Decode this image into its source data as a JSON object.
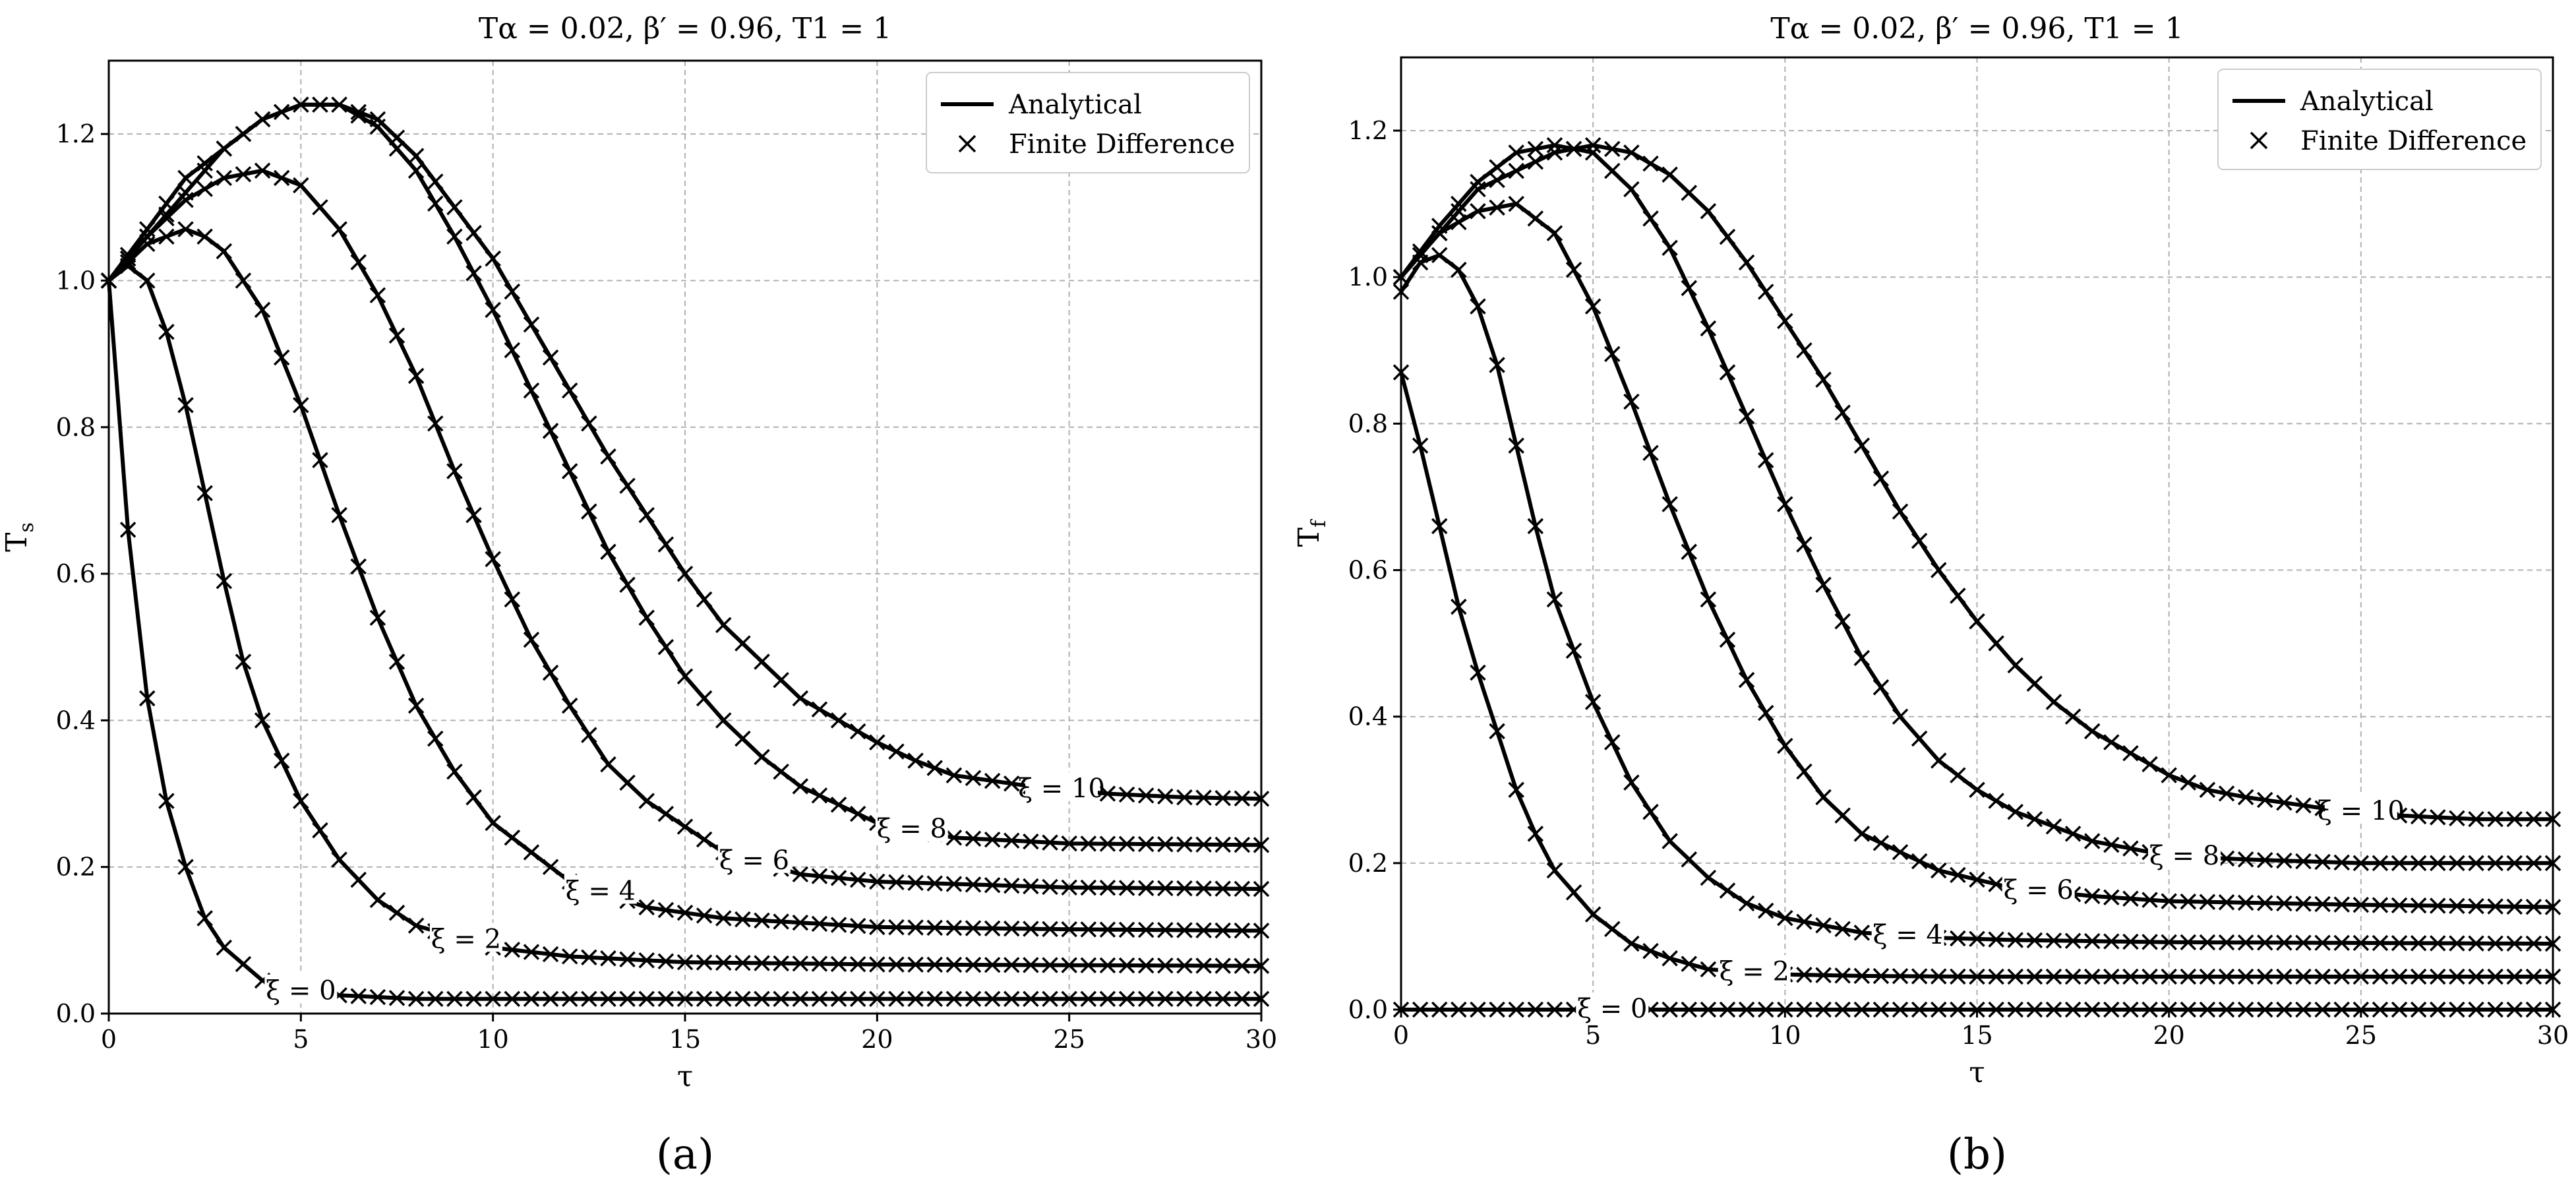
{
  "chart_data": [
    {
      "id": "a",
      "type": "line",
      "panel_label": "(a)",
      "title": "Tα = 0.02, β′ = 0.96, T1 = 1",
      "xlabel": "τ",
      "ylabel": "Ts",
      "xlim": [
        0,
        30
      ],
      "ylim": [
        0,
        1.3
      ],
      "xticks": [
        0,
        5,
        10,
        15,
        20,
        25,
        30
      ],
      "yticks": [
        0.0,
        0.2,
        0.4,
        0.6,
        0.8,
        1.0,
        1.2
      ],
      "grid": true,
      "legend": {
        "position": "top-right",
        "entries": [
          "Analytical",
          "Finite Difference"
        ]
      },
      "series": [
        {
          "name": "ξ = 0",
          "label": "ξ = 0",
          "label_tau": 5.0,
          "tau": [
            0,
            0.5,
            1,
            1.5,
            2,
            2.5,
            3,
            4,
            5,
            6,
            8,
            10,
            15,
            20,
            25,
            30
          ],
          "values": [
            1.0,
            0.66,
            0.43,
            0.29,
            0.2,
            0.13,
            0.09,
            0.045,
            0.03,
            0.025,
            0.02,
            0.02,
            0.02,
            0.02,
            0.02,
            0.02
          ]
        },
        {
          "name": "ξ = 2",
          "label": "ξ = 2",
          "label_tau": 9.3,
          "tau": [
            0,
            0.5,
            1,
            1.5,
            2,
            2.5,
            3,
            3.5,
            4,
            5,
            6,
            7,
            8,
            10,
            12,
            15,
            20,
            25,
            30
          ],
          "values": [
            1.0,
            1.02,
            1.0,
            0.93,
            0.83,
            0.71,
            0.59,
            0.48,
            0.4,
            0.29,
            0.21,
            0.155,
            0.12,
            0.09,
            0.078,
            0.07,
            0.067,
            0.066,
            0.065
          ]
        },
        {
          "name": "ξ = 4",
          "label": "ξ = 4",
          "label_tau": 12.8,
          "tau": [
            0,
            1,
            2,
            2.5,
            3,
            4,
            5,
            6,
            7,
            8,
            9,
            10,
            12,
            14,
            16,
            20,
            25,
            30
          ],
          "values": [
            1.0,
            1.05,
            1.07,
            1.06,
            1.04,
            0.96,
            0.83,
            0.68,
            0.54,
            0.42,
            0.33,
            0.26,
            0.18,
            0.145,
            0.13,
            0.118,
            0.115,
            0.113
          ]
        },
        {
          "name": "ξ = 6",
          "label": "ξ = 6",
          "label_tau": 16.8,
          "tau": [
            0,
            1,
            2,
            3,
            4,
            5,
            6,
            7,
            8,
            9,
            10,
            11,
            12,
            13,
            14,
            16,
            18,
            20,
            25,
            30
          ],
          "values": [
            1.0,
            1.06,
            1.11,
            1.14,
            1.15,
            1.13,
            1.07,
            0.98,
            0.87,
            0.74,
            0.62,
            0.51,
            0.42,
            0.34,
            0.29,
            0.22,
            0.19,
            0.18,
            0.172,
            0.17
          ]
        },
        {
          "name": "ξ = 8",
          "label": "ξ = 8",
          "label_tau": 20.9,
          "tau": [
            0,
            1,
            2,
            3,
            4,
            5,
            6,
            7,
            8,
            9,
            10,
            11,
            12,
            13,
            14,
            15,
            16,
            17,
            18,
            20,
            22,
            25,
            30
          ],
          "values": [
            1.0,
            1.06,
            1.12,
            1.18,
            1.22,
            1.24,
            1.24,
            1.21,
            1.15,
            1.06,
            0.96,
            0.85,
            0.74,
            0.63,
            0.54,
            0.46,
            0.4,
            0.35,
            0.31,
            0.26,
            0.24,
            0.232,
            0.23
          ]
        },
        {
          "name": "ξ = 10",
          "label": "ξ = 10",
          "label_tau": 24.8,
          "tau": [
            0,
            2,
            4,
            5,
            6,
            7,
            8,
            9,
            10,
            11,
            12,
            13,
            14,
            15,
            16,
            17,
            18,
            19,
            20,
            21,
            22,
            24,
            26,
            28,
            30
          ],
          "values": [
            1.0,
            1.14,
            1.22,
            1.24,
            1.24,
            1.22,
            1.17,
            1.1,
            1.03,
            0.94,
            0.85,
            0.76,
            0.68,
            0.6,
            0.53,
            0.48,
            0.43,
            0.4,
            0.37,
            0.345,
            0.325,
            0.31,
            0.3,
            0.295,
            0.293
          ]
        }
      ]
    },
    {
      "id": "b",
      "type": "line",
      "panel_label": "(b)",
      "title": "Tα = 0.02, β′ = 0.96, T1 = 1",
      "xlabel": "τ",
      "ylabel": "Tf",
      "xlim": [
        0,
        30
      ],
      "ylim": [
        0,
        1.3
      ],
      "xticks": [
        0,
        5,
        10,
        15,
        20,
        25,
        30
      ],
      "yticks": [
        0.0,
        0.2,
        0.4,
        0.6,
        0.8,
        1.0,
        1.2
      ],
      "grid": true,
      "legend": {
        "position": "top-right",
        "entries": [
          "Analytical",
          "Finite Difference"
        ]
      },
      "series": [
        {
          "name": "ξ = 0",
          "label": "ξ = 0",
          "label_tau": 5.5,
          "tau": [
            0,
            30
          ],
          "values": [
            0.0,
            0.0
          ]
        },
        {
          "name": "ξ = 2",
          "label": "ξ = 2",
          "label_tau": 9.2,
          "tau": [
            0,
            0.5,
            1,
            1.5,
            2,
            2.5,
            3,
            3.5,
            4,
            5,
            6,
            7,
            8,
            10,
            12,
            15,
            20,
            25,
            30
          ],
          "values": [
            0.87,
            0.77,
            0.66,
            0.55,
            0.46,
            0.38,
            0.3,
            0.24,
            0.19,
            0.13,
            0.09,
            0.07,
            0.055,
            0.048,
            0.046,
            0.045,
            0.045,
            0.045,
            0.045
          ]
        },
        {
          "name": "ξ = 4",
          "label": "ξ = 4",
          "label_tau": 13.2,
          "tau": [
            0,
            0.5,
            1,
            1.5,
            2,
            2.5,
            3,
            3.5,
            4,
            5,
            6,
            7,
            8,
            9,
            10,
            12,
            14,
            16,
            20,
            25,
            30
          ],
          "values": [
            0.98,
            1.02,
            1.03,
            1.01,
            0.96,
            0.88,
            0.77,
            0.66,
            0.56,
            0.42,
            0.31,
            0.23,
            0.18,
            0.145,
            0.125,
            0.105,
            0.098,
            0.095,
            0.092,
            0.091,
            0.09
          ]
        },
        {
          "name": "ξ = 6",
          "label": "ξ = 6",
          "label_tau": 16.6,
          "tau": [
            0,
            1,
            2,
            3,
            4,
            5,
            6,
            7,
            8,
            9,
            10,
            11,
            12,
            14,
            16,
            18,
            20,
            25,
            30
          ],
          "values": [
            1.0,
            1.06,
            1.09,
            1.1,
            1.06,
            0.96,
            0.83,
            0.69,
            0.56,
            0.45,
            0.36,
            0.29,
            0.24,
            0.19,
            0.165,
            0.155,
            0.148,
            0.143,
            0.14
          ]
        },
        {
          "name": "ξ = 8",
          "label": "ξ = 8",
          "label_tau": 20.4,
          "tau": [
            0,
            1,
            2,
            3,
            4,
            5,
            6,
            7,
            8,
            9,
            10,
            11,
            12,
            13,
            14,
            15,
            16,
            18,
            20,
            22,
            25,
            30
          ],
          "values": [
            1.0,
            1.07,
            1.13,
            1.17,
            1.18,
            1.17,
            1.12,
            1.04,
            0.93,
            0.81,
            0.69,
            0.58,
            0.48,
            0.4,
            0.34,
            0.3,
            0.27,
            0.23,
            0.21,
            0.205,
            0.2,
            0.2
          ]
        },
        {
          "name": "ξ = 10",
          "label": "ξ = 10",
          "label_tau": 25.0,
          "tau": [
            0,
            2,
            4,
            5,
            6,
            7,
            8,
            9,
            10,
            11,
            12,
            13,
            14,
            15,
            16,
            17,
            18,
            19,
            20,
            21,
            22,
            24,
            26,
            28,
            30
          ],
          "values": [
            1.0,
            1.12,
            1.17,
            1.18,
            1.17,
            1.14,
            1.09,
            1.02,
            0.94,
            0.86,
            0.77,
            0.68,
            0.6,
            0.53,
            0.47,
            0.42,
            0.38,
            0.35,
            0.32,
            0.3,
            0.29,
            0.275,
            0.265,
            0.26,
            0.26
          ]
        }
      ]
    }
  ]
}
